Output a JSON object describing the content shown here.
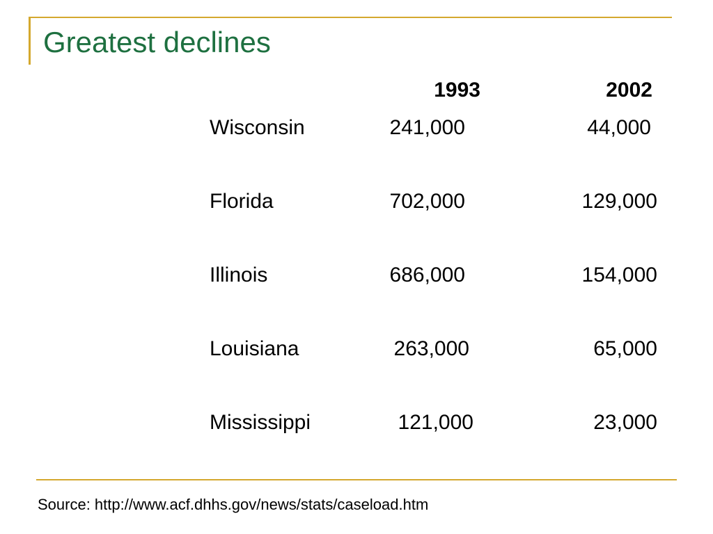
{
  "title": "Greatest declines",
  "columns": {
    "y1993": "1993",
    "y2002": "2002"
  },
  "rows": [
    {
      "state": "Wisconsin",
      "v1993": "241,000",
      "v2002": "44,000"
    },
    {
      "state": "Florida",
      "v1993": "702,000",
      "v2002": "129,000"
    },
    {
      "state": "Illinois",
      "v1993": "686,000",
      "v2002": "154,000"
    },
    {
      "state": "Louisiana",
      "v1993": "263,000",
      "v2002": "65,000"
    },
    {
      "state": "Mississippi",
      "v1993": "121,000",
      "v2002": "23,000"
    }
  ],
  "source": "Source: http://www.acf.dhhs.gov/news/stats/caseload.htm",
  "colors": {
    "title": "#1e7040",
    "accent": "#d4a82e"
  }
}
